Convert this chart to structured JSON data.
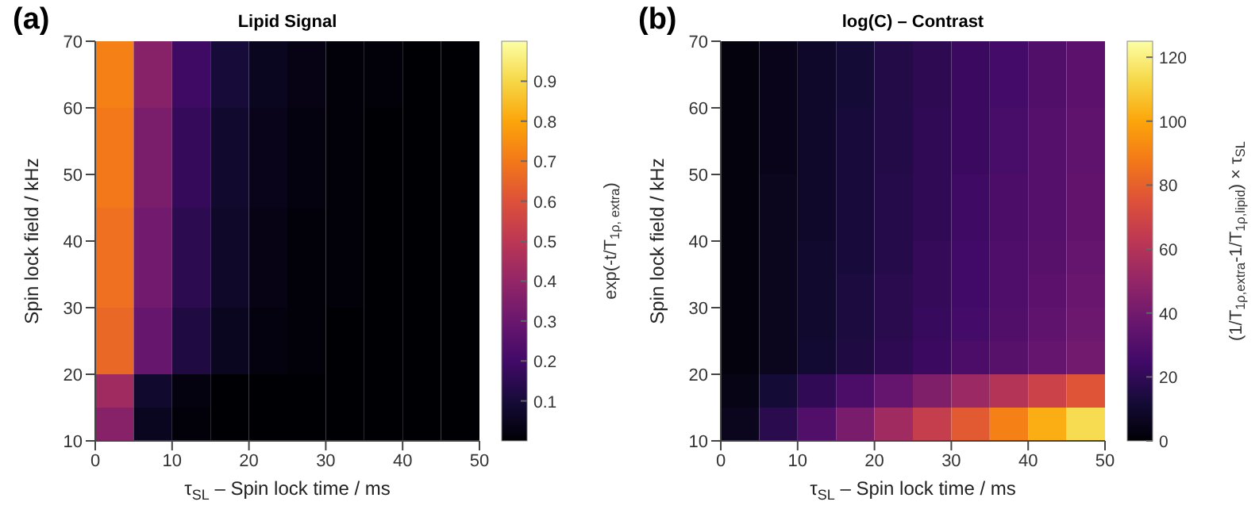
{
  "chart_data": [
    {
      "type": "heatmap",
      "title": "Lipid Signal",
      "xlabel": "τ$_{SL}$ – Spin lock time / ms",
      "ylabel": "Spin lock field / kHz",
      "clabel": "exp(-t/T$_{1ρ, extra}$)",
      "annotations": [
        "(a)"
      ],
      "x": [
        2.5,
        7.5,
        12.5,
        17.5,
        22.5,
        27.5,
        32.5,
        37.5,
        42.5,
        47.5
      ],
      "y": [
        67.5,
        62.5,
        57.5,
        52.5,
        47.5,
        42.5,
        37.5,
        32.5,
        27.5,
        22.5,
        17.5,
        12.5
      ],
      "xlim": [
        0,
        50
      ],
      "xticks": [
        0,
        10,
        20,
        30,
        40,
        50
      ],
      "ylim": [
        10,
        70
      ],
      "yticks": [
        10,
        20,
        30,
        40,
        50,
        60,
        70
      ],
      "clim": [
        0,
        1
      ],
      "cticks": [
        0.1,
        0.2,
        0.3,
        0.4,
        0.5,
        0.6,
        0.7,
        0.8,
        0.9
      ],
      "cells": [
        [
          0.72,
          0.37,
          0.19,
          0.1,
          0.05,
          0.03,
          0.01,
          0.01,
          0,
          0
        ],
        [
          0.72,
          0.37,
          0.19,
          0.1,
          0.05,
          0.03,
          0.01,
          0.01,
          0,
          0
        ],
        [
          0.7,
          0.34,
          0.17,
          0.08,
          0.04,
          0.02,
          0.01,
          0,
          0,
          0
        ],
        [
          0.7,
          0.34,
          0.17,
          0.08,
          0.04,
          0.02,
          0.01,
          0,
          0,
          0
        ],
        [
          0.7,
          0.34,
          0.17,
          0.08,
          0.04,
          0.02,
          0.01,
          0,
          0,
          0
        ],
        [
          0.68,
          0.32,
          0.15,
          0.07,
          0.03,
          0.01,
          0.01,
          0,
          0,
          0
        ],
        [
          0.68,
          0.32,
          0.15,
          0.07,
          0.03,
          0.01,
          0.01,
          0,
          0,
          0
        ],
        [
          0.68,
          0.32,
          0.15,
          0.07,
          0.03,
          0.01,
          0.01,
          0,
          0,
          0
        ],
        [
          0.66,
          0.29,
          0.12,
          0.05,
          0.02,
          0.01,
          0,
          0,
          0,
          0
        ],
        [
          0.66,
          0.29,
          0.12,
          0.05,
          0.02,
          0.01,
          0,
          0,
          0,
          0
        ],
        [
          0.43,
          0.08,
          0.02,
          0,
          0,
          0,
          0,
          0,
          0,
          0
        ],
        [
          0.37,
          0.05,
          0.01,
          0,
          0,
          0,
          0,
          0,
          0,
          0
        ]
      ]
    },
    {
      "type": "heatmap",
      "title": "log(C) – Contrast",
      "xlabel": "τ$_{SL}$ – Spin lock time / ms",
      "ylabel": "Spin lock field / kHz",
      "clabel": "(1/T$_{1ρ,extra}$-1/T$_{1ρ,lipid}$) × τ$_{SL}$",
      "annotations": [
        "(b)"
      ],
      "x": [
        2.5,
        7.5,
        12.5,
        17.5,
        22.5,
        27.5,
        32.5,
        37.5,
        42.5,
        47.5
      ],
      "y": [
        67.5,
        62.5,
        57.5,
        52.5,
        47.5,
        42.5,
        37.5,
        32.5,
        27.5,
        22.5,
        17.5,
        12.5
      ],
      "xlim": [
        0,
        50
      ],
      "xticks": [
        0,
        10,
        20,
        30,
        40,
        50
      ],
      "ylim": [
        10,
        70
      ],
      "yticks": [
        10,
        20,
        30,
        40,
        50,
        60,
        70
      ],
      "clim": [
        0,
        125
      ],
      "cticks": [
        0,
        20,
        40,
        60,
        80,
        100,
        120
      ],
      "cells": [
        [
          2,
          5,
          9,
          12,
          16,
          19,
          23,
          26,
          30,
          33
        ],
        [
          2,
          5,
          9,
          12,
          16,
          19,
          23,
          26,
          30,
          33
        ],
        [
          2,
          5,
          9,
          13,
          16,
          20,
          23,
          27,
          31,
          34
        ],
        [
          2,
          5,
          9,
          13,
          16,
          20,
          23,
          27,
          31,
          34
        ],
        [
          2,
          6,
          9,
          13,
          17,
          20,
          24,
          28,
          31,
          35
        ],
        [
          2,
          6,
          9,
          13,
          17,
          20,
          24,
          28,
          31,
          35
        ],
        [
          2,
          6,
          10,
          13,
          17,
          21,
          25,
          29,
          32,
          36
        ],
        [
          2,
          6,
          10,
          14,
          18,
          21,
          25,
          29,
          33,
          37
        ],
        [
          2,
          6,
          10,
          14,
          18,
          22,
          26,
          30,
          34,
          38
        ],
        [
          2,
          6,
          11,
          15,
          19,
          23,
          28,
          32,
          36,
          40
        ],
        [
          4,
          12,
          20,
          28,
          36,
          44,
          52,
          60,
          68,
          76
        ],
        [
          6,
          18,
          30,
          42,
          54,
          66,
          78,
          90,
          102,
          114
        ]
      ]
    }
  ]
}
